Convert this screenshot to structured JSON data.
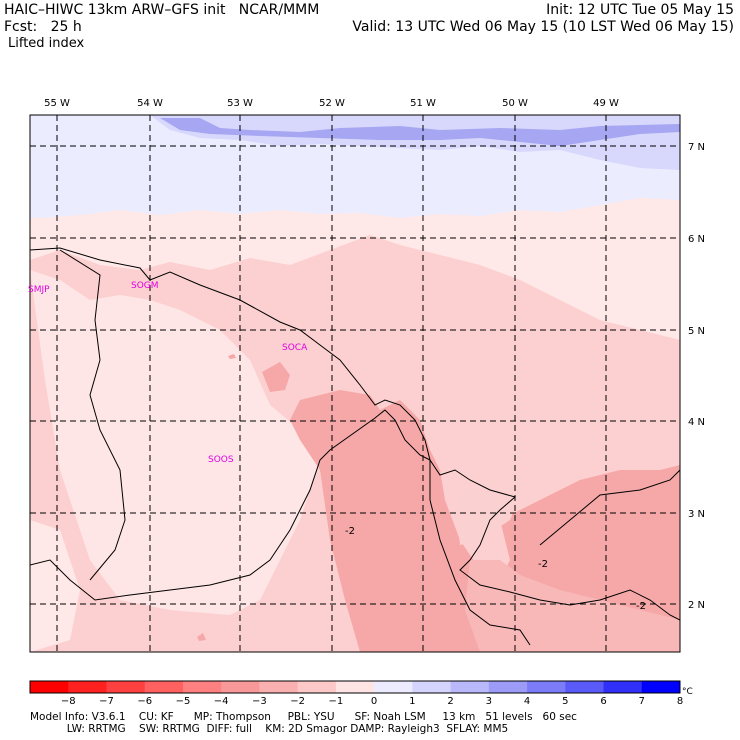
{
  "header": {
    "model_title": "HAIC–HIWC 13km ARW–GFS init   NCAR/MMM",
    "fcst_label": "Fcst:   25 h",
    "field_name": "Lifted index",
    "init_line": "Init: 12 UTC Tue 05 May 15",
    "valid_line": "Valid: 13 UTC Wed 06 May 15 (10 LST Wed 06 May 15)"
  },
  "map": {
    "longitude_labels": [
      "55 W",
      "54 W",
      "53 W",
      "52 W",
      "51 W",
      "50 W",
      "49 W"
    ],
    "latitude_labels": [
      "7 N",
      "6 N",
      "5 N",
      "4 N",
      "3 N",
      "2 N"
    ],
    "station_labels": [
      "SMJP",
      "SOGM",
      "SOCA",
      "SOOS"
    ],
    "contour_labels": [
      "-2",
      "-2",
      "-2"
    ],
    "colors": {
      "blue_light": "#ececff",
      "blue_mid": "#c8c8f8",
      "blue_strong": "#9c9cf0",
      "pink_pale": "#ffe8e8",
      "pink_light": "#fcd0d0",
      "pink_mid": "#f8b0b0",
      "station_label": "#e000e0"
    }
  },
  "colorbar": {
    "tick_labels": [
      "−8",
      "−7",
      "−6",
      "−5",
      "−4",
      "−3",
      "−2",
      "−1",
      "0",
      "1",
      "2",
      "3",
      "4",
      "5",
      "6",
      "7",
      "8"
    ],
    "unit": "°C",
    "colors": [
      "#ff0000",
      "#ff2020",
      "#ff4040",
      "#ff6060",
      "#ff8080",
      "#f89898",
      "#fab0b0",
      "#fcc8c8",
      "#ffe4e4",
      "#ecebff",
      "#d4d4fc",
      "#b8b8fa",
      "#9c9cf8",
      "#7c7cf8",
      "#5a5af8",
      "#3030f8",
      "#0000ff"
    ]
  },
  "footer": {
    "line1": "Model Info: V3.6.1    CU: KF      MP: Thompson     PBL: YSU      SF: Noah LSM     13 km   51 levels   60 sec",
    "line2": "           LW: RRTMG    SW: RRTMG  DIFF: full    KM: 2D Smagor DAMP: Rayleigh3  SFLAY: MM5"
  }
}
